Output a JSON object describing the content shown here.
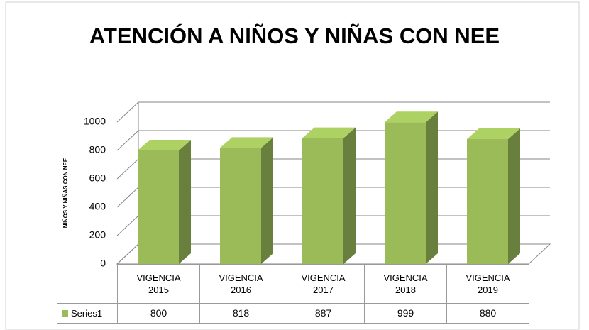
{
  "chart_data": {
    "type": "bar3d",
    "title": "ATENCIÓN A NIÑOS Y NIÑAS CON NEE",
    "y_axis_label": "NIÑOS Y NIÑAS CON NEE",
    "categories": [
      "VIGENCIA 2015",
      "VIGENCIA 2016",
      "VIGENCIA 2017",
      "VIGENCIA 2018",
      "VIGENCIA 2019"
    ],
    "series": [
      {
        "name": "Series1",
        "color": "#9bbb59",
        "values": [
          800,
          818,
          887,
          999,
          880
        ]
      }
    ],
    "ylim": [
      0,
      1000
    ],
    "yticks": [
      0,
      200,
      400,
      600,
      800,
      1000
    ],
    "grid": true,
    "data_table": true
  }
}
